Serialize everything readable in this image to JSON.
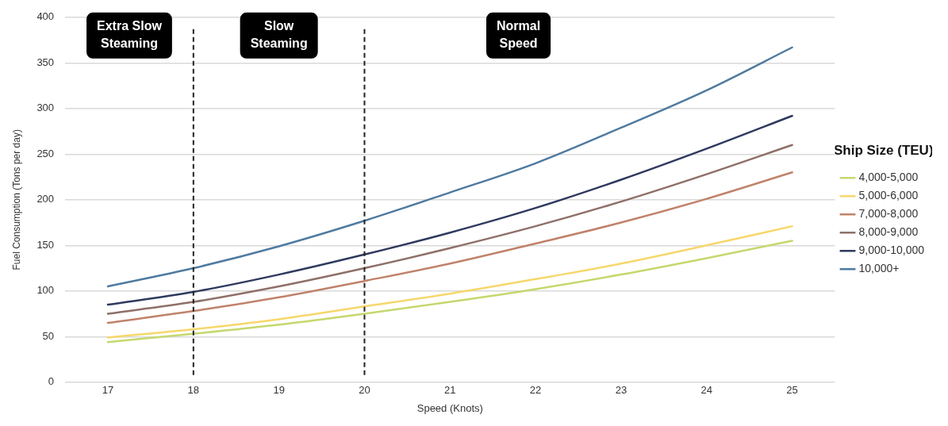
{
  "chart_data": {
    "type": "line",
    "xlabel": "Speed (Knots)",
    "ylabel": "Fuel Consumption (Tons per day)",
    "legend_title": "Ship Size (TEU)",
    "x": [
      17,
      18,
      19,
      20,
      21,
      22,
      23,
      24,
      25
    ],
    "xlim": [
      16.5,
      25.5
    ],
    "xticks": [
      17,
      18,
      19,
      20,
      21,
      22,
      23,
      24,
      25
    ],
    "ylim": [
      0,
      400
    ],
    "yticks": [
      0,
      50,
      100,
      150,
      200,
      250,
      300,
      350,
      400
    ],
    "grid": "y",
    "legend": "right",
    "marker": "none",
    "line_style": "solid",
    "series": [
      {
        "name": "4,000-5,000",
        "color": "#c5d86d",
        "values": [
          44,
          53,
          63,
          75,
          88,
          102,
          118,
          136,
          155
        ]
      },
      {
        "name": "5,000-6,000",
        "color": "#f7d76b",
        "values": [
          49,
          58,
          69,
          83,
          97,
          113,
          130,
          150,
          171
        ]
      },
      {
        "name": "7,000-8,000",
        "color": "#c0826a",
        "values": [
          65,
          78,
          93,
          111,
          130,
          152,
          175,
          201,
          230
        ]
      },
      {
        "name": "8,000-9,000",
        "color": "#8e7068",
        "values": [
          75,
          88,
          105,
          125,
          147,
          171,
          198,
          228,
          260
        ]
      },
      {
        "name": "9,000-10,000",
        "color": "#2f3a5e",
        "values": [
          85,
          99,
          118,
          140,
          164,
          191,
          222,
          256,
          292
        ]
      },
      {
        "name": "10,000+",
        "color": "#4f7aa0",
        "values": [
          105,
          125,
          149,
          177,
          208,
          240,
          279,
          320,
          367
        ]
      }
    ],
    "ref_lines": [
      {
        "axis": "x",
        "value": 18,
        "color": "#222222",
        "line_style": "dashed"
      },
      {
        "axis": "x",
        "value": 20,
        "color": "#222222",
        "line_style": "dashed"
      }
    ],
    "annotations": [
      "Extra Slow Steaming",
      "Slow Steaming",
      "Normal Speed"
    ]
  }
}
